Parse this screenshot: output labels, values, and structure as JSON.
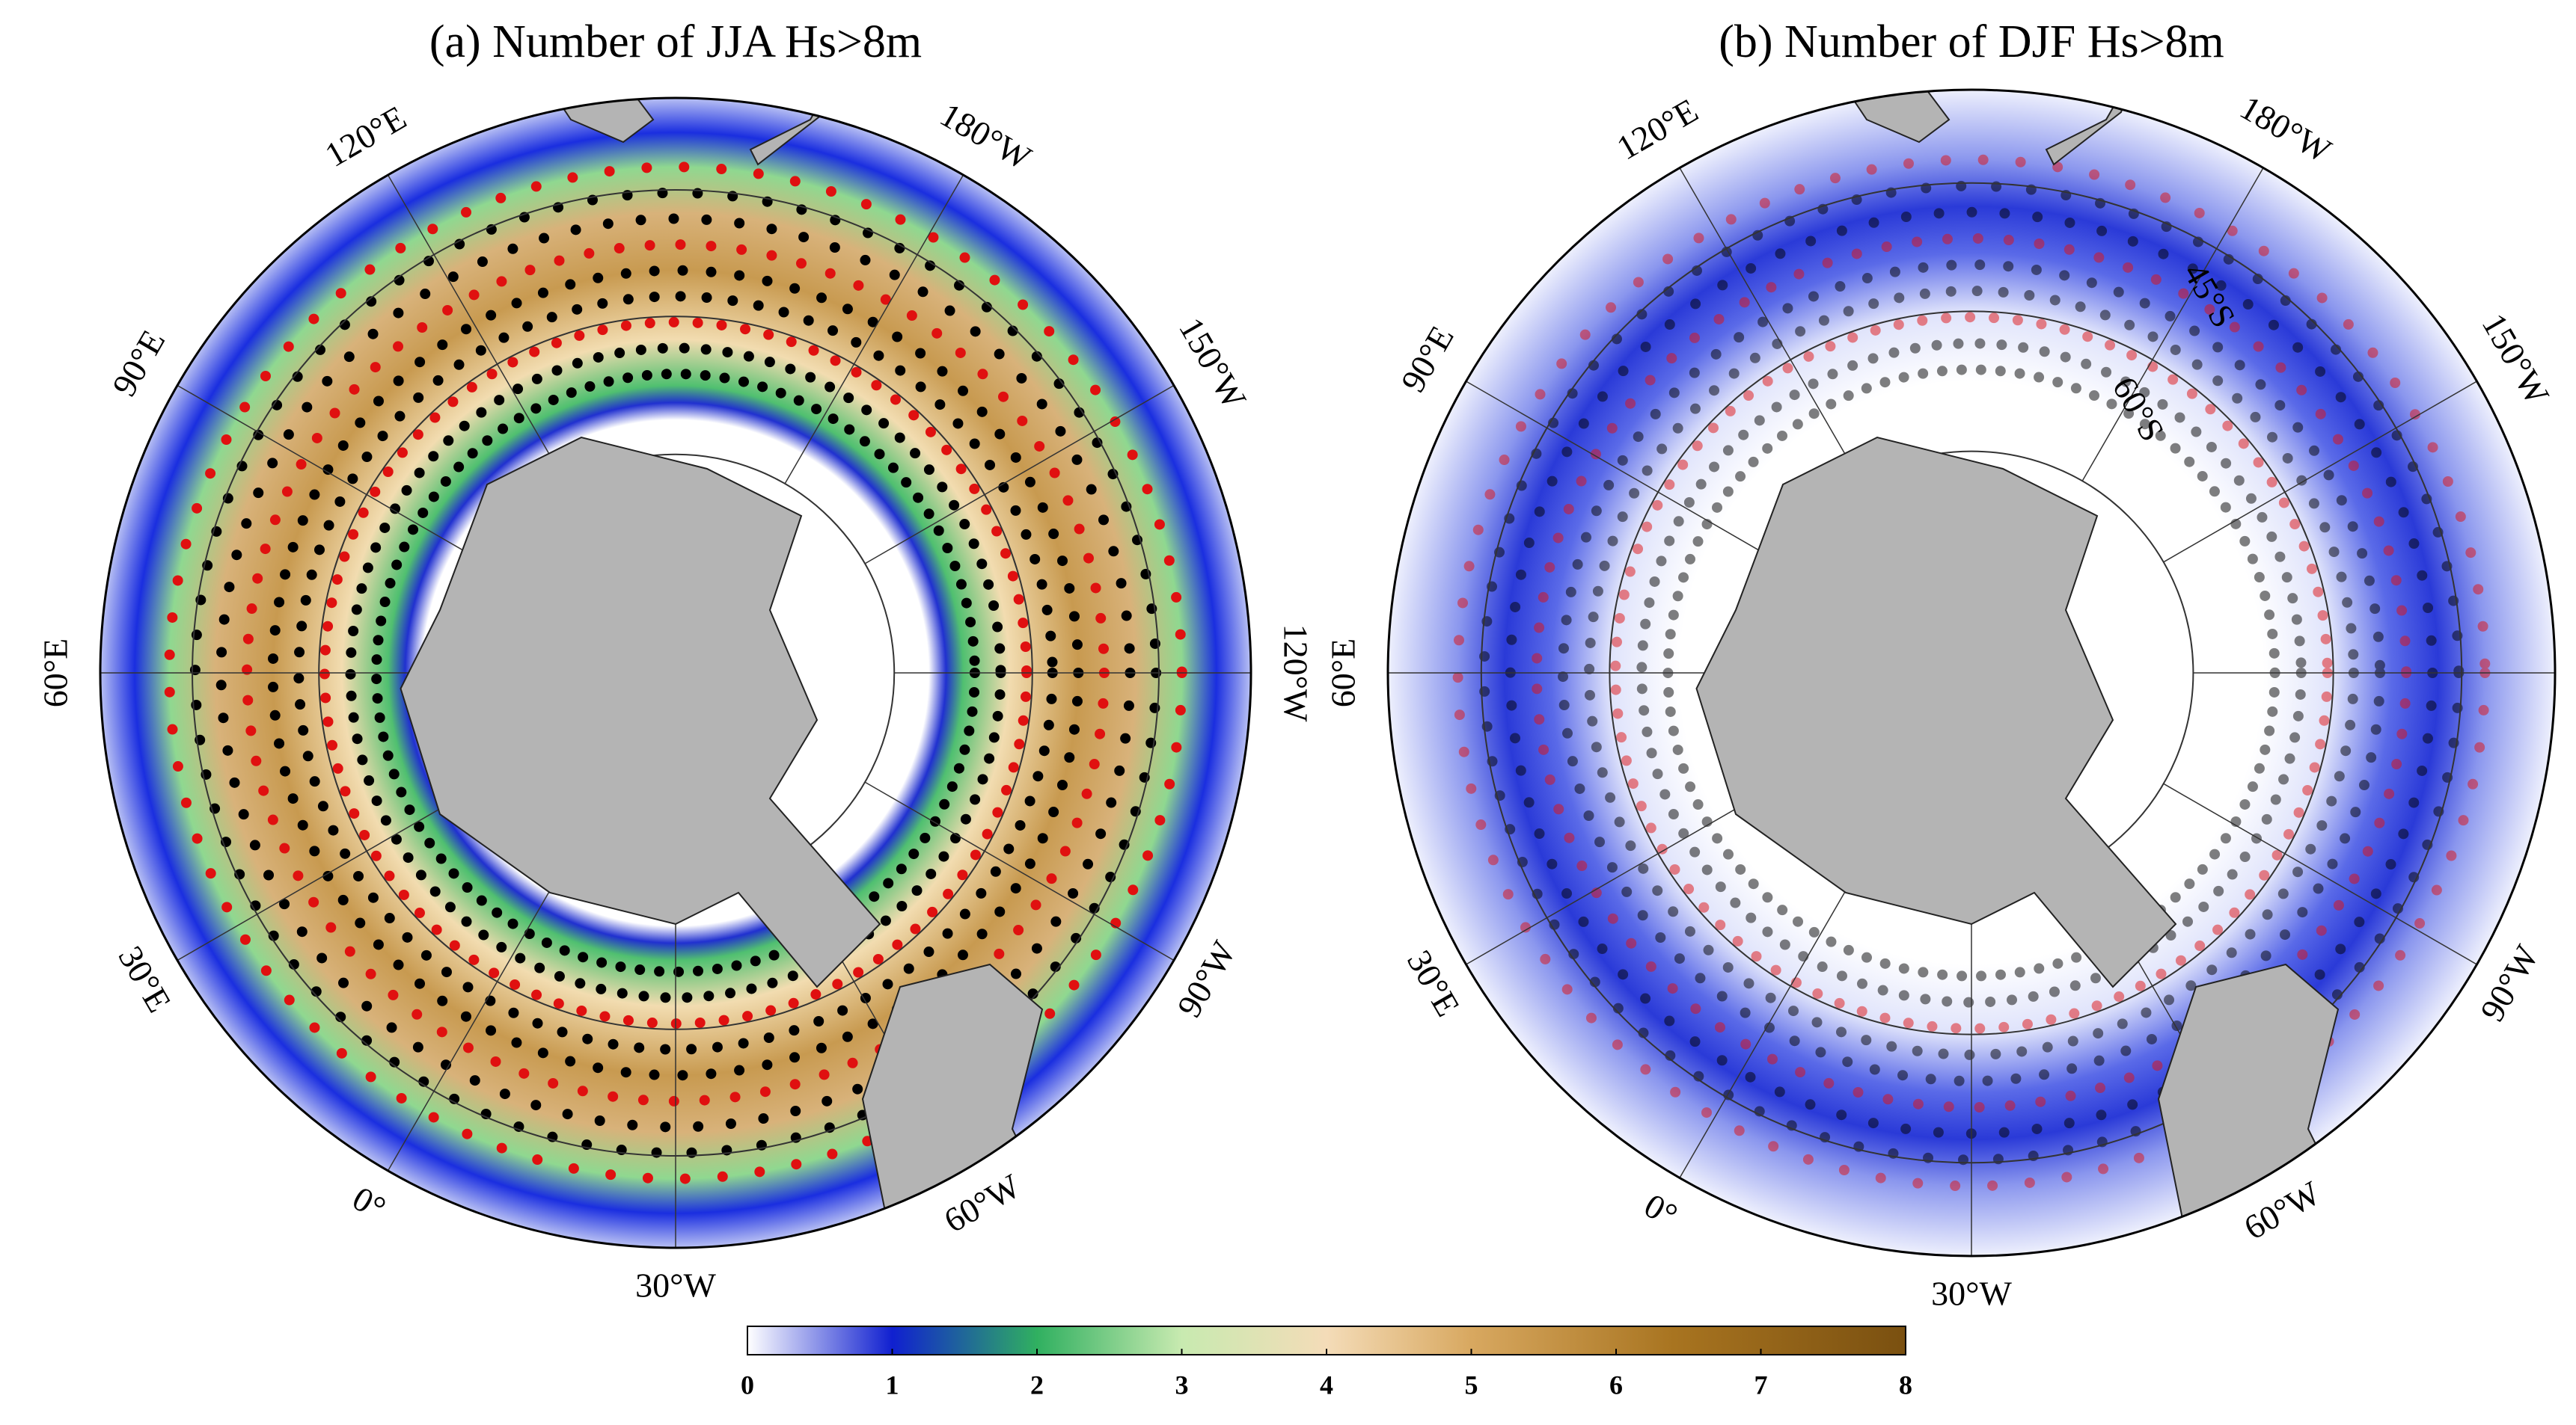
{
  "panels": [
    {
      "title": "(a) Number of JJA Hs>8m",
      "longitude_labels": [
        "0°",
        "30°E",
        "60°E",
        "90°E",
        "120°E",
        "180°W",
        "150°W",
        "120°W",
        "90°W",
        "60°W",
        "30°W"
      ]
    },
    {
      "title": "(b) Number of DJF Hs>8m",
      "longitude_labels": [
        "0°",
        "30°E",
        "60°E",
        "90°E",
        "120°E",
        "180°W",
        "150°W",
        "120°W",
        "90°W",
        "60°W",
        "30°W"
      ],
      "latitude_labels": [
        "45°S",
        "60°S"
      ]
    }
  ],
  "colorbar": {
    "range": [
      0,
      8
    ],
    "ticks": [
      0,
      1,
      2,
      3,
      4,
      5,
      6,
      7,
      8
    ]
  }
}
